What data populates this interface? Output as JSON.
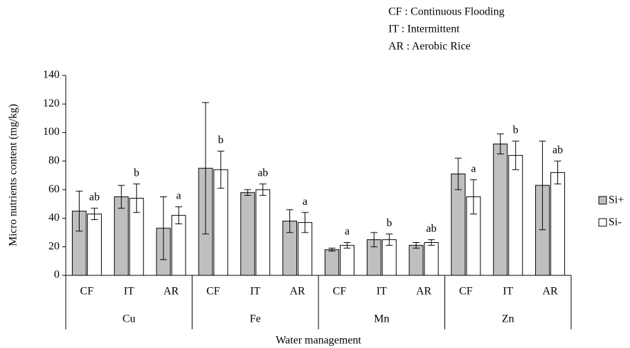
{
  "chart_data": {
    "type": "bar",
    "notes": [
      "CF : Continuous Flooding",
      "IT : Intermittent",
      "AR : Aerobic Rice"
    ],
    "y_label": "Micro nutrients content (mg/kg)",
    "x_label": "Water management",
    "categories": [
      "CF",
      "IT",
      "AR",
      "CF",
      "IT",
      "AR",
      "CF",
      "IT",
      "AR",
      "CF",
      "IT",
      "AR"
    ],
    "groups": [
      "Cu",
      "Fe",
      "Mn",
      "Zn"
    ],
    "series": [
      {
        "name": "Si+",
        "color": "#bfbfbf",
        "values": [
          45,
          55,
          33,
          75,
          58,
          38,
          18,
          25,
          21,
          71,
          92,
          63
        ],
        "errors": [
          14,
          8,
          22,
          46,
          2,
          8,
          1,
          5,
          2,
          11,
          7,
          31
        ]
      },
      {
        "name": "Si-",
        "color": "#ffffff",
        "values": [
          43,
          54,
          42,
          74,
          60,
          37,
          21,
          25,
          23,
          55,
          84,
          72
        ],
        "errors": [
          4,
          10,
          6,
          13,
          4,
          7,
          2,
          4,
          2,
          12,
          10,
          8
        ]
      }
    ],
    "annotations": [
      "ab",
      "b",
      "a",
      "b",
      "ab",
      "a",
      "a",
      "b",
      "ab",
      "a",
      "b",
      "ab"
    ],
    "ylim": [
      0,
      140
    ],
    "yticks": [
      0,
      20,
      40,
      60,
      80,
      100,
      120,
      140
    ]
  }
}
